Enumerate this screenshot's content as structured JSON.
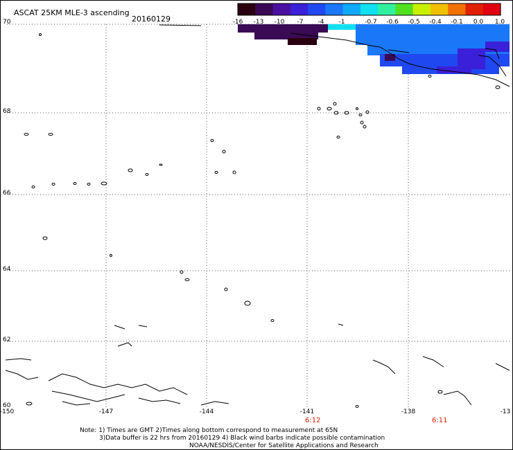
{
  "header": {
    "title": "ASCAT 25KM MLE-3 ascending",
    "date": "20160129"
  },
  "colorbar": {
    "labels": [
      "-16",
      "-13",
      "-10",
      "-7",
      "-4",
      "-1",
      "-0.7",
      "-0.6",
      "-0.5",
      "-0.4",
      "-0.1",
      "0.0",
      "1.0"
    ],
    "colors": [
      "#2a0010",
      "#3a0a55",
      "#4a10a0",
      "#3a20d8",
      "#2048f0",
      "#1a78f8",
      "#10a8f8",
      "#10e0f0",
      "#30f0a0",
      "#50e020",
      "#c8f000",
      "#f0c000",
      "#f07000",
      "#e02000",
      "#e00010"
    ]
  },
  "axes": {
    "lat_labels": [
      "70",
      "68",
      "66",
      "64",
      "62",
      "60"
    ],
    "lon_labels": [
      "-150",
      "-147",
      "-144",
      "-141",
      "-138",
      "-13"
    ]
  },
  "times": [
    "6:12",
    "6:11"
  ],
  "notes": {
    "line1": "Note: 1) Times are GMT 2)Times along bottom correspond to measurement at 65N",
    "line2": "3)Data buffer is 22 hrs from 20160129 4) Black wind barbs indicate possible contamination",
    "line3": "NOAA/NESDIS/Center for Satellite Applications and Research"
  },
  "colors": {
    "grid": "#444444",
    "coast": "#000000",
    "time_text": "#cc2200"
  }
}
